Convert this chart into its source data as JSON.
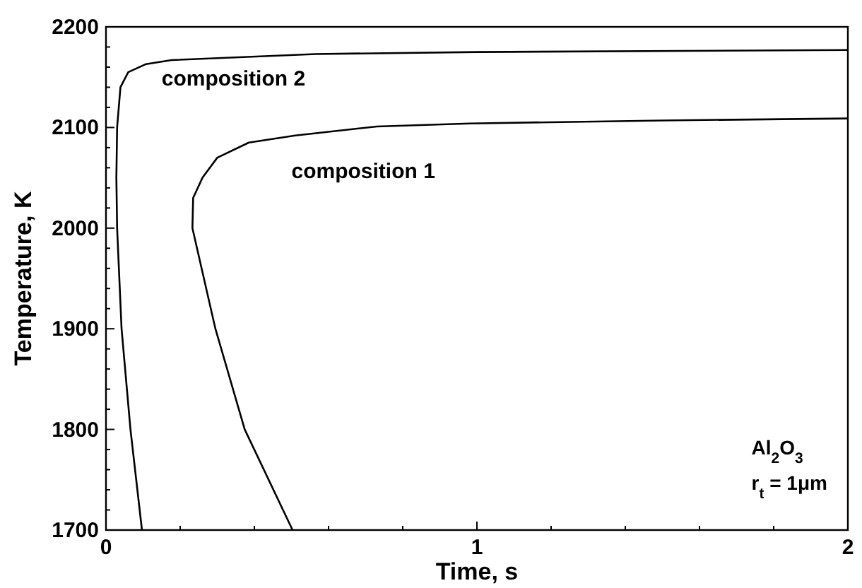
{
  "chart_data": {
    "type": "line",
    "xlabel": "Time, s",
    "ylabel": "Temperature, K",
    "xlim": [
      0,
      2
    ],
    "ylim": [
      1700,
      2200
    ],
    "xticks": [
      0,
      {
        "value": 0.2,
        "label": null
      },
      {
        "value": 0.4,
        "label": null
      },
      {
        "value": 0.6,
        "label": null
      },
      {
        "value": 0.8,
        "label": null
      },
      1,
      {
        "value": 1.2,
        "label": null
      },
      {
        "value": 1.4,
        "label": null
      },
      {
        "value": 1.6,
        "label": null
      },
      {
        "value": 1.8,
        "label": null
      },
      2
    ],
    "yticks": [
      1700,
      {
        "value": 1720,
        "label": null
      },
      {
        "value": 1740,
        "label": null
      },
      {
        "value": 1760,
        "label": null
      },
      {
        "value": 1780,
        "label": null
      },
      1800,
      {
        "value": 1820,
        "label": null
      },
      {
        "value": 1840,
        "label": null
      },
      {
        "value": 1860,
        "label": null
      },
      {
        "value": 1880,
        "label": null
      },
      1900,
      {
        "value": 1920,
        "label": null
      },
      {
        "value": 1940,
        "label": null
      },
      {
        "value": 1960,
        "label": null
      },
      {
        "value": 1980,
        "label": null
      },
      2000,
      {
        "value": 2020,
        "label": null
      },
      {
        "value": 2040,
        "label": null
      },
      {
        "value": 2060,
        "label": null
      },
      {
        "value": 2080,
        "label": null
      },
      2100,
      {
        "value": 2120,
        "label": null
      },
      {
        "value": 2140,
        "label": null
      },
      {
        "value": 2160,
        "label": null
      },
      {
        "value": 2180,
        "label": null
      },
      2200
    ],
    "grid": false,
    "marker": "none",
    "line_style": "solid",
    "series": [
      {
        "name": "composition 2",
        "color": "#000000",
        "x": [
          0.097,
          0.066,
          0.042,
          0.03,
          0.028,
          0.03,
          0.039,
          0.06,
          0.108,
          0.177,
          0.565,
          1.0,
          2.0
        ],
        "values": [
          1700,
          1800,
          1900,
          2000,
          2050,
          2100,
          2140,
          2155,
          2163,
          2167,
          2173,
          2175,
          2177
        ]
      },
      {
        "name": "composition 1",
        "color": "#000000",
        "x": [
          0.503,
          0.374,
          0.295,
          0.233,
          0.235,
          0.26,
          0.3,
          0.385,
          0.51,
          0.73,
          0.98,
          1.5,
          2.0
        ],
        "values": [
          1700,
          1800,
          1900,
          2000,
          2030,
          2050,
          2070,
          2085,
          2092,
          2101,
          2104,
          2107,
          2109
        ]
      }
    ],
    "annotations": [
      {
        "text": "Al$_{2}$O$_{3}$"
      },
      {
        "text": "r$_{t}$ = 1μm"
      }
    ]
  }
}
